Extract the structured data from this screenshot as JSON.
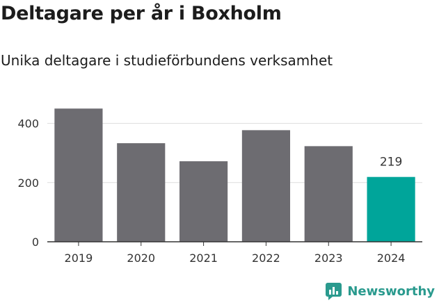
{
  "title": "Deltagare per år i Boxholm",
  "subtitle": "Unika deltagare i studieförbundens verksamhet",
  "brand": "Newsworthy",
  "colors": {
    "bar": "#6d6c71",
    "highlight": "#00a59a",
    "grid": "#dddddd",
    "axis": "#333333",
    "text": "#333333",
    "brand": "#2a9a8e"
  },
  "chart_data": {
    "type": "bar",
    "categories": [
      "2019",
      "2020",
      "2021",
      "2022",
      "2023",
      "2024"
    ],
    "values": [
      450,
      333,
      272,
      377,
      323,
      219
    ],
    "highlight_index": 5,
    "data_labels": [
      null,
      null,
      null,
      null,
      null,
      "219"
    ],
    "yticks": [
      0,
      200,
      400
    ],
    "ylim": [
      0,
      460
    ],
    "grid": true,
    "xlabel": "",
    "ylabel": ""
  }
}
